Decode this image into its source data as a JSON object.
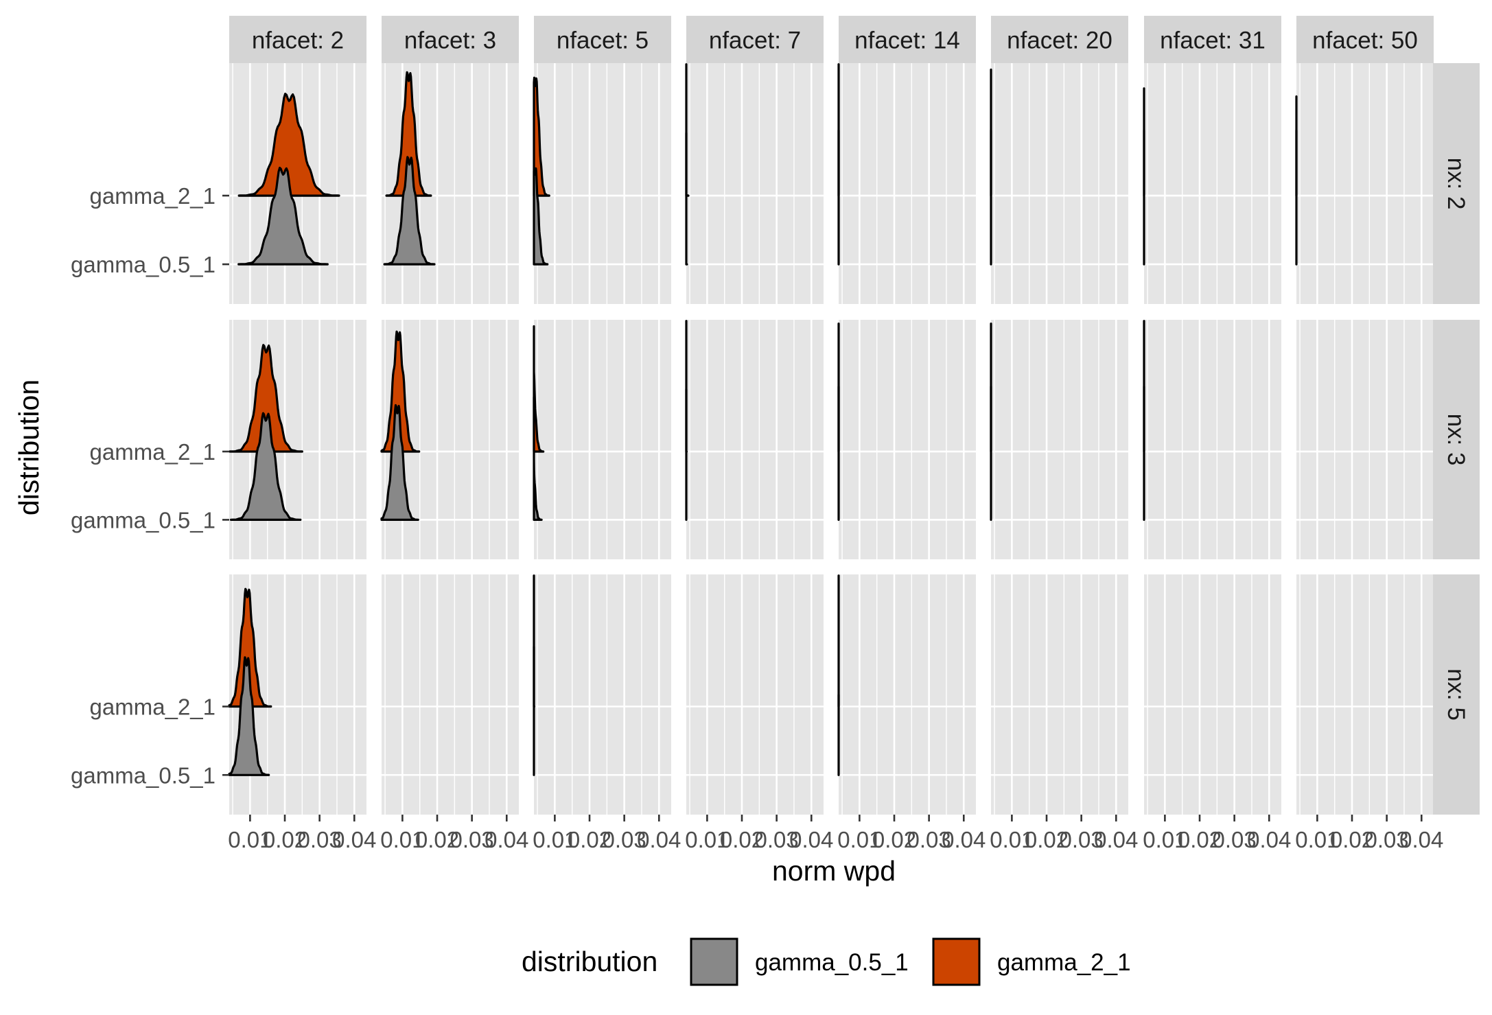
{
  "chart_data": {
    "type": "area",
    "subtype": "ridgeline density, faceted",
    "xlabel": "norm wpd",
    "ylabel": "distribution",
    "x_ticks": [
      0.01,
      0.02,
      0.03,
      0.04
    ],
    "x_tick_labels": [
      "0.01",
      "0.02",
      "0.03",
      "0.04"
    ],
    "xlim": [
      0.004,
      0.0435
    ],
    "y_categories": [
      "gamma_0.5_1",
      "gamma_2_1"
    ],
    "col_facet_labels": [
      "nfacet: 2",
      "nfacet: 3",
      "nfacet: 5",
      "nfacet: 7",
      "nfacet: 14",
      "nfacet: 20",
      "nfacet: 31",
      "nfacet: 50"
    ],
    "row_facet_labels": [
      "nx: 2",
      "nx: 3",
      "nx: 5"
    ],
    "legend": {
      "title": "distribution",
      "position": "bottom",
      "entries": [
        {
          "label": "gamma_0.5_1",
          "color": "#888888"
        },
        {
          "label": "gamma_2_1",
          "color": "#CC4400"
        }
      ]
    },
    "colors": {
      "gamma_0.5_1": "#888888",
      "gamma_2_1": "#CC4400",
      "panel_bg": "#E5E5E5",
      "strip_bg": "#D4D4D4",
      "grid": "#FFFFFF"
    },
    "series": [
      {
        "nx": 2,
        "nfacet": 2,
        "gamma_0.5_1": {
          "peak_x": 0.0195,
          "spread": 0.0032,
          "height": 0.72
        },
        "gamma_2_1": {
          "peak_x": 0.0212,
          "spread": 0.0036,
          "height": 0.76
        }
      },
      {
        "nx": 2,
        "nfacet": 3,
        "gamma_0.5_1": {
          "peak_x": 0.012,
          "spread": 0.0018,
          "height": 0.8
        },
        "gamma_2_1": {
          "peak_x": 0.0118,
          "spread": 0.0016,
          "height": 0.92
        }
      },
      {
        "nx": 2,
        "nfacet": 5,
        "gamma_0.5_1": {
          "peak_x": 0.0043,
          "spread": 0.0009,
          "height": 0.72
        },
        "gamma_2_1": {
          "peak_x": 0.0044,
          "spread": 0.001,
          "height": 0.88
        }
      },
      {
        "nx": 2,
        "nfacet": 7,
        "gamma_0.5_1": {
          "peak_x": 0.0018,
          "spread": 0.0006,
          "height": 0.98
        },
        "gamma_2_1": {
          "peak_x": 0.0018,
          "spread": 0.0007,
          "height": 0.98
        }
      },
      {
        "nx": 2,
        "nfacet": 14,
        "gamma_0.5_1": {
          "peak_x": -0.0003,
          "spread": 0.0004,
          "height": 1.0
        },
        "gamma_2_1": {
          "peak_x": -0.0001,
          "spread": 0.0005,
          "height": 0.98
        }
      },
      {
        "nx": 2,
        "nfacet": 20,
        "gamma_0.5_1": {
          "peak_x": -0.0005,
          "spread": 0.0004,
          "height": 1.0
        },
        "gamma_2_1": {
          "peak_x": -0.0004,
          "spread": 0.0005,
          "height": 0.94
        }
      },
      {
        "nx": 2,
        "nfacet": 31,
        "gamma_0.5_1": {
          "peak_x": -0.0005,
          "spread": 0.0003,
          "height": 1.0
        },
        "gamma_2_1": {
          "peak_x": -0.0005,
          "spread": 0.0004,
          "height": 0.8
        }
      },
      {
        "nx": 2,
        "nfacet": 50,
        "gamma_0.5_1": {
          "peak_x": -0.0005,
          "spread": 0.0003,
          "height": 1.0
        },
        "gamma_2_1": {
          "peak_x": -0.0004,
          "spread": 0.0003,
          "height": 0.74
        }
      },
      {
        "nx": 3,
        "nfacet": 2,
        "gamma_0.5_1": {
          "peak_x": 0.0145,
          "spread": 0.0025,
          "height": 0.8
        },
        "gamma_2_1": {
          "peak_x": 0.0146,
          "spread": 0.0026,
          "height": 0.8
        }
      },
      {
        "nx": 3,
        "nfacet": 3,
        "gamma_0.5_1": {
          "peak_x": 0.0085,
          "spread": 0.0015,
          "height": 0.86
        },
        "gamma_2_1": {
          "peak_x": 0.0088,
          "spread": 0.0015,
          "height": 0.9
        }
      },
      {
        "nx": 3,
        "nfacet": 5,
        "gamma_0.5_1": {
          "peak_x": 0.003,
          "spread": 0.0008,
          "height": 0.92
        },
        "gamma_2_1": {
          "peak_x": 0.0031,
          "spread": 0.0009,
          "height": 0.94
        }
      },
      {
        "nx": 3,
        "nfacet": 7,
        "gamma_0.5_1": {
          "peak_x": 0.0012,
          "spread": 0.0006,
          "height": 0.98
        },
        "gamma_2_1": {
          "peak_x": 0.0013,
          "spread": 0.0007,
          "height": 0.98
        }
      },
      {
        "nx": 3,
        "nfacet": 14,
        "gamma_0.5_1": {
          "peak_x": -0.0003,
          "spread": 0.0004,
          "height": 1.0
        },
        "gamma_2_1": {
          "peak_x": -0.0002,
          "spread": 0.0005,
          "height": 0.96
        }
      },
      {
        "nx": 3,
        "nfacet": 20,
        "gamma_0.5_1": {
          "peak_x": -0.0005,
          "spread": 0.0003,
          "height": 1.0
        },
        "gamma_2_1": {
          "peak_x": -0.0004,
          "spread": 0.0004,
          "height": 0.96
        }
      },
      {
        "nx": 3,
        "nfacet": 31,
        "gamma_0.5_1": {
          "peak_x": -0.0005,
          "spread": 0.0003,
          "height": 1.0
        },
        "gamma_2_1": {
          "peak_x": -0.0005,
          "spread": 0.0004,
          "height": 0.98
        }
      },
      {
        "nx": 5,
        "nfacet": 2,
        "gamma_0.5_1": {
          "peak_x": 0.009,
          "spread": 0.0016,
          "height": 0.88
        },
        "gamma_2_1": {
          "peak_x": 0.0092,
          "spread": 0.0017,
          "height": 0.88
        }
      },
      {
        "nx": 5,
        "nfacet": 5,
        "gamma_0.5_1": {
          "peak_x": 0.0012,
          "spread": 0.0006,
          "height": 0.96
        },
        "gamma_2_1": {
          "peak_x": 0.0013,
          "spread": 0.0007,
          "height": 0.98
        }
      },
      {
        "nx": 5,
        "nfacet": 14,
        "gamma_0.5_1": {
          "peak_x": -0.0005,
          "spread": 0.0003,
          "height": 0.6
        },
        "gamma_2_1": {
          "peak_x": -0.0004,
          "spread": 0.0004,
          "height": 0.98
        }
      }
    ]
  }
}
